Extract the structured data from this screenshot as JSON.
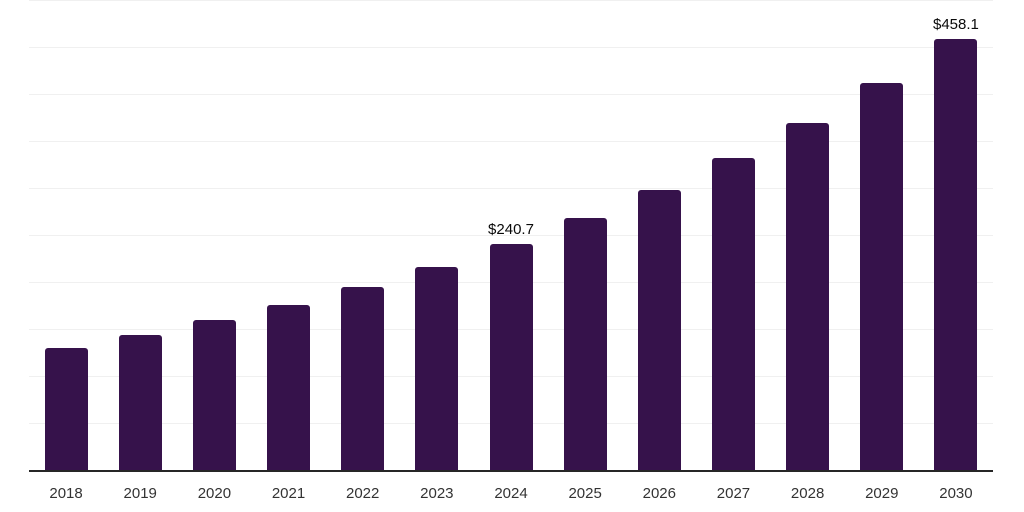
{
  "chart_data": {
    "type": "bar",
    "title": "",
    "xlabel": "",
    "ylabel": "",
    "categories": [
      "2018",
      "2019",
      "2020",
      "2021",
      "2022",
      "2023",
      "2024",
      "2025",
      "2026",
      "2027",
      "2028",
      "2029",
      "2030"
    ],
    "values": [
      130.3,
      143.6,
      159.3,
      176.0,
      194.2,
      215.5,
      240.7,
      267.9,
      298.2,
      332.0,
      369.5,
      411.3,
      458.1
    ],
    "labeled_points": [
      {
        "category": "2024",
        "label": "$240.7"
      },
      {
        "category": "2030",
        "label": "$458.1"
      }
    ],
    "ylim": [
      0,
      500
    ],
    "gridline_step": 50,
    "grid": "horizontal-only",
    "legend_position": "none",
    "bar_color": "#36124B",
    "grid_color": "#F0F0F0",
    "axis_line_color": "#262626",
    "tick_label_color": "#333333",
    "value_label_color": "#0A0A0A"
  }
}
